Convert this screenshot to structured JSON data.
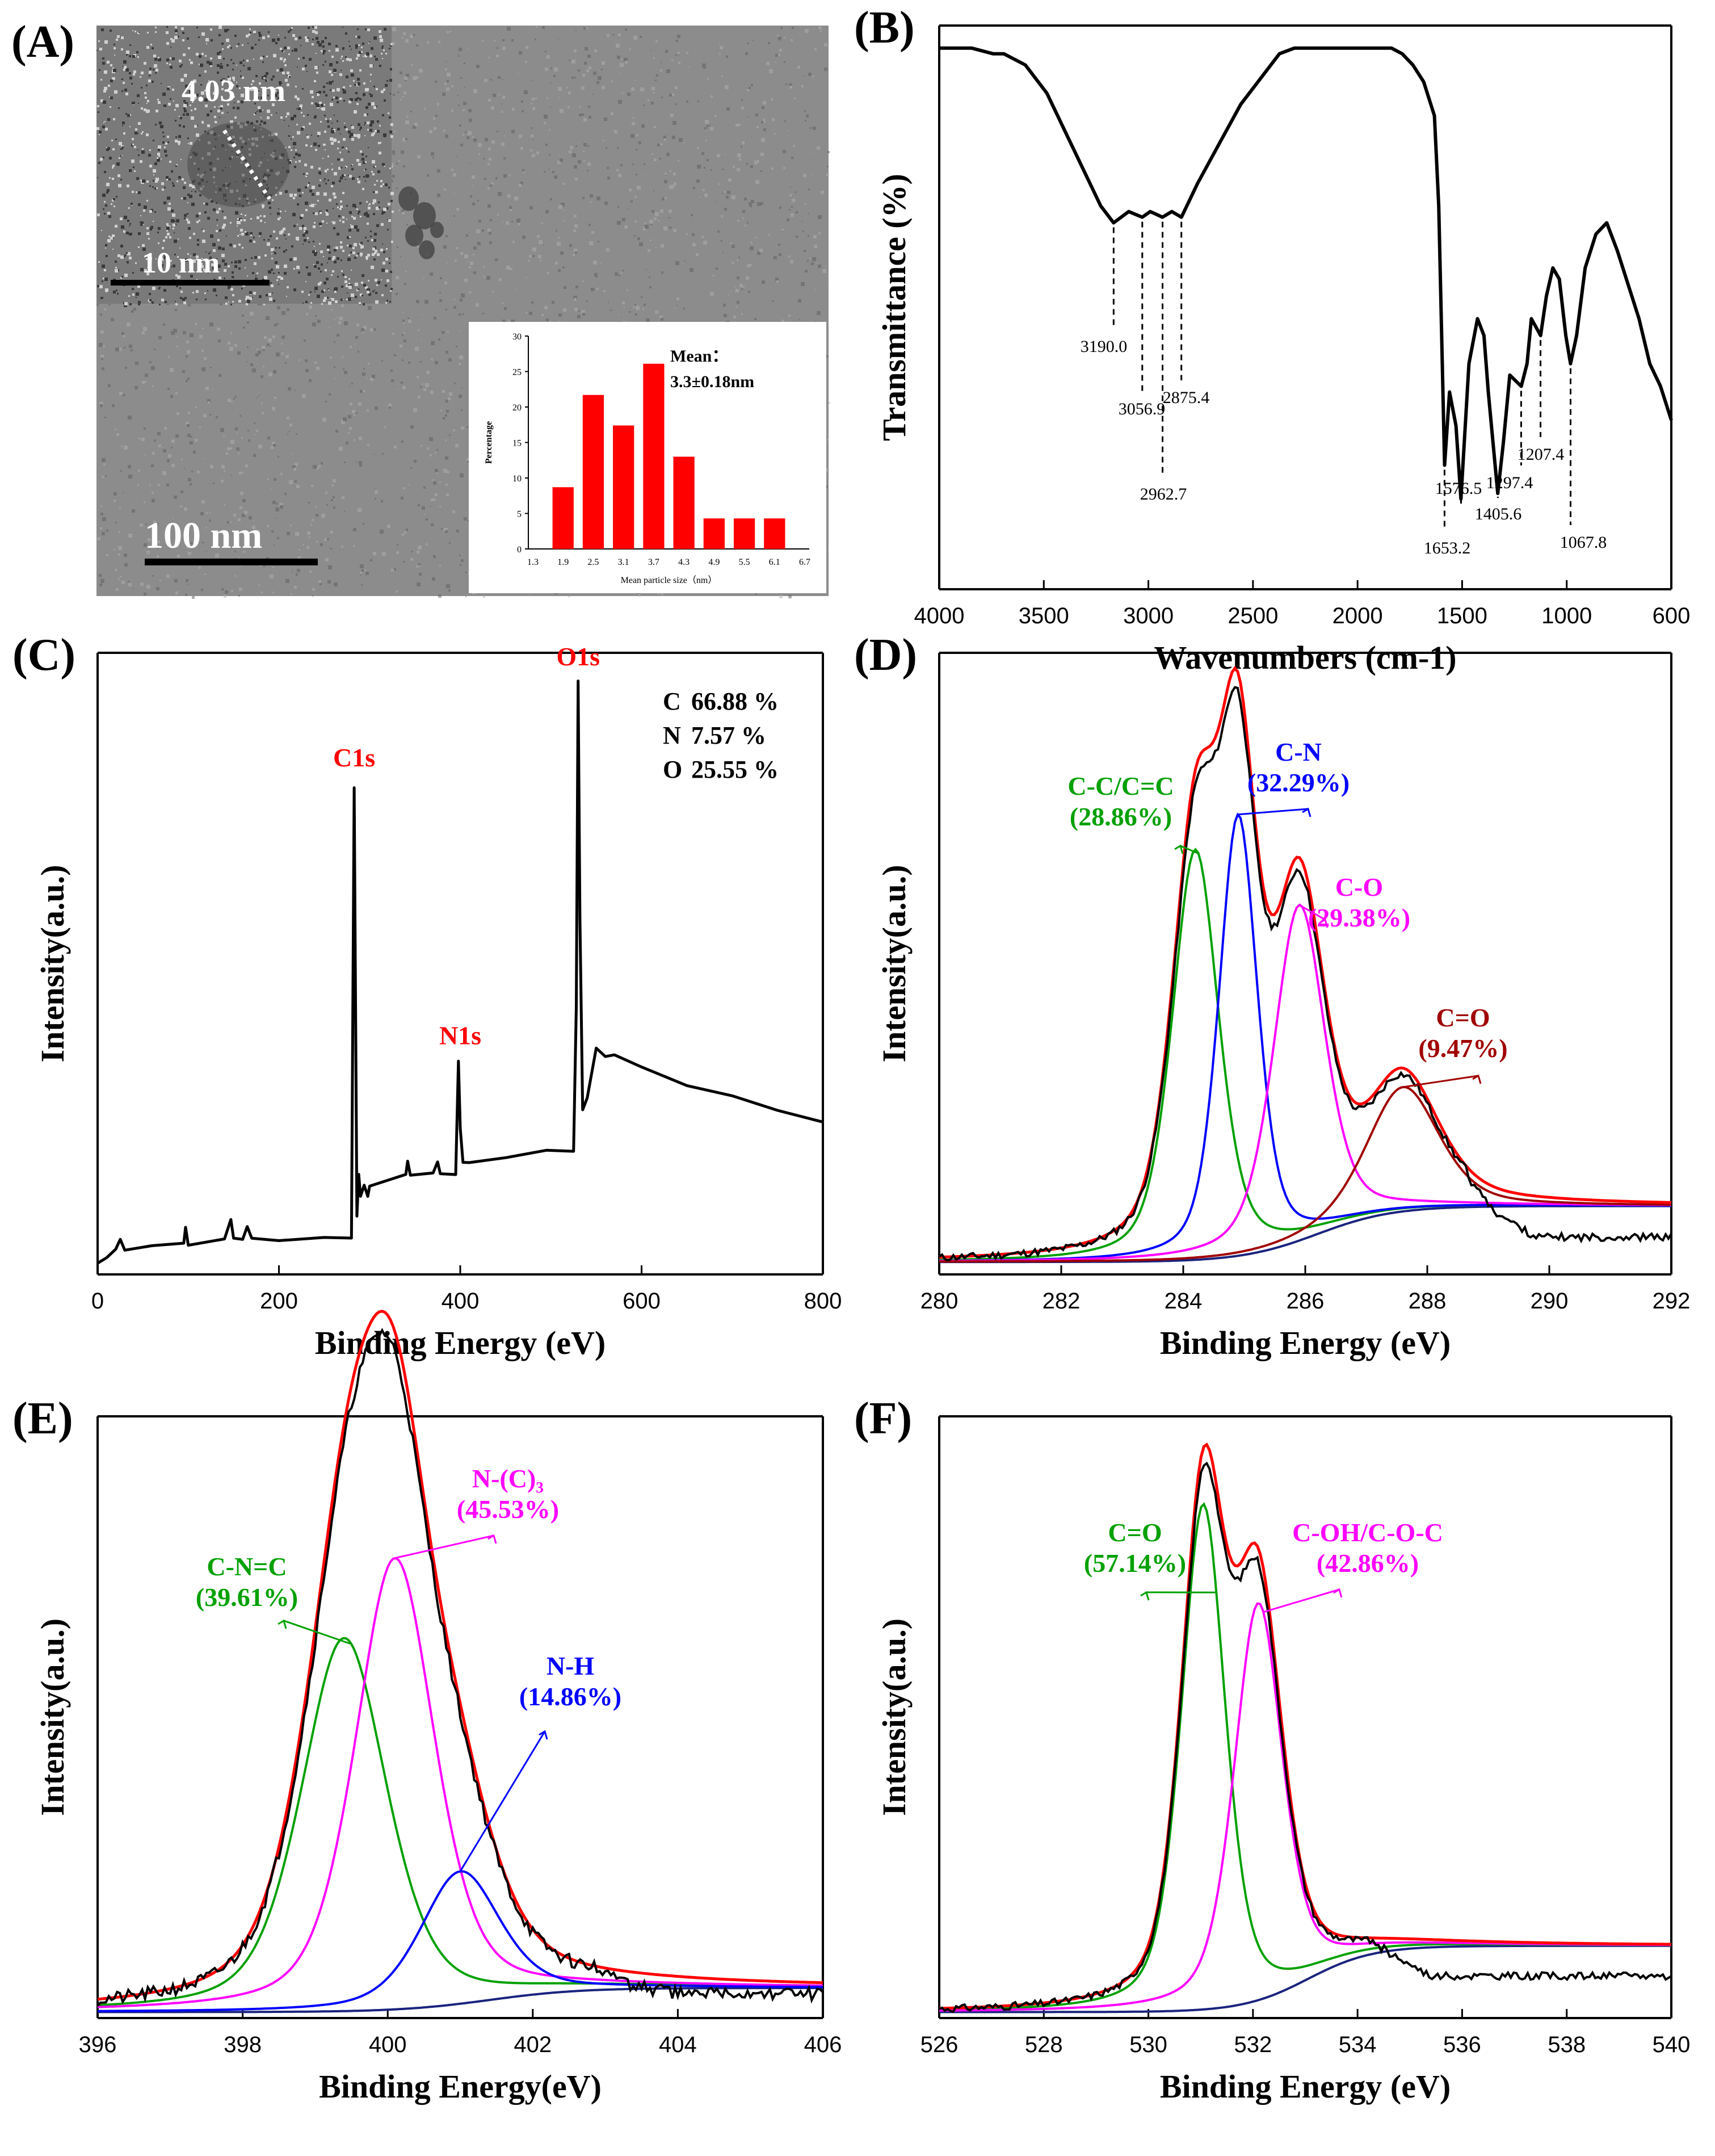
{
  "chart_data": [
    {
      "panel": "(A)",
      "type": "image",
      "annotations": [
        "4.03 nm",
        "10 nm",
        "100 nm"
      ],
      "inset_histogram": {
        "type": "bar",
        "ylabel": "Percentage",
        "xlabel": "Mean particle size（nm）",
        "mean_label": "Mean：",
        "mean_value": "3.3±0.18nm",
        "ticks_x": [
          "1.3",
          "1.9",
          "2.5",
          "3.1",
          "3.7",
          "4.3",
          "4.9",
          "5.5",
          "6.1",
          "6.7"
        ],
        "ticks_y": [
          "0",
          "5",
          "10",
          "15",
          "20",
          "25",
          "30"
        ],
        "categories": [
          "1.9",
          "2.5",
          "3.1",
          "3.7",
          "4.3",
          "4.9",
          "5.5",
          "6.1"
        ],
        "values": [
          8.7,
          21.7,
          17.4,
          26.1,
          13.0,
          4.3,
          4.3,
          4.3
        ],
        "ylim": [
          0,
          30
        ],
        "bar_color": "#ff0000"
      }
    },
    {
      "panel": "(B)",
      "type": "line",
      "xlabel": "Wavenumbers (cm-1)",
      "ylabel": "Transmittance (%)",
      "xlim": [
        4000,
        600
      ],
      "xticks": [
        "4000",
        "3500",
        "3000",
        "2500",
        "2000",
        "1500",
        "1000",
        "600"
      ],
      "peak_labels": [
        "3190.0",
        "3056.9",
        "2962.7",
        "2875.4",
        "1653.2",
        "1576.5",
        "1405.6",
        "1297.4",
        "1207.4",
        "1067.8"
      ],
      "series": [
        {
          "color": "#000000",
          "x": [
            4000,
            3850,
            3750,
            3700,
            3600,
            3500,
            3400,
            3300,
            3250,
            3190,
            3120,
            3057,
            3020,
            2963,
            2920,
            2875,
            2800,
            2700,
            2600,
            2500,
            2420,
            2350,
            2300,
            2000,
            1900,
            1850,
            1800,
            1750,
            1700,
            1680,
            1653,
            1630,
            1600,
            1577,
            1540,
            1500,
            1470,
            1450,
            1406,
            1380,
            1350,
            1297,
            1270,
            1250,
            1207,
            1180,
            1150,
            1120,
            1090,
            1068,
            1040,
            1000,
            950,
            900,
            850,
            800,
            750,
            700,
            650,
            600
          ],
          "y": [
            96,
            96,
            95,
            95,
            93,
            88,
            80,
            72,
            68,
            65,
            67,
            66,
            67,
            66,
            67,
            66,
            72,
            79,
            86,
            91,
            95,
            96,
            96,
            96,
            96,
            95,
            93,
            90,
            84,
            68,
            22,
            35,
            29,
            16,
            40,
            48,
            45,
            35,
            17,
            26,
            38,
            36,
            40,
            48,
            45,
            52,
            57,
            55,
            45,
            40,
            45,
            57,
            63,
            65,
            60,
            54,
            48,
            40,
            36,
            30
          ]
        }
      ]
    },
    {
      "panel": "(C)",
      "type": "line",
      "xlabel": "Binding Energy (eV)",
      "ylabel": "Intensity(a.u.)",
      "xlim": [
        0,
        800
      ],
      "xticks": [
        "0",
        "200",
        "400",
        "600",
        "800"
      ],
      "peak_names": [
        "C1s",
        "N1s",
        "O1s"
      ],
      "composition": [
        {
          "el": "C",
          "pct": "66.88 %"
        },
        {
          "el": "N",
          "pct": "7.57 %"
        },
        {
          "el": "O",
          "pct": "25.55 %"
        }
      ],
      "series": [
        {
          "color": "#000000",
          "x": [
            0,
            10,
            20,
            25,
            30,
            60,
            95,
            97,
            100,
            140,
            147,
            150,
            160,
            165,
            170,
            200,
            250,
            280,
            283,
            284,
            286,
            288,
            290,
            294,
            298,
            300,
            340,
            342,
            345,
            370,
            375,
            378,
            395,
            398,
            400,
            403,
            410,
            450,
            495,
            525,
            528,
            530,
            532,
            535,
            540,
            550,
            560,
            570,
            600,
            650,
            700,
            750,
            800
          ],
          "y": [
            2,
            3,
            4,
            6,
            4,
            5,
            5,
            8,
            5,
            6,
            9,
            6,
            6,
            8,
            6,
            6,
            6,
            6,
            82,
            58,
            10,
            17,
            13,
            15,
            13,
            15,
            17,
            19,
            17,
            17,
            19,
            17,
            17,
            36,
            25,
            19,
            19,
            20,
            21,
            21,
            45,
            100,
            60,
            28,
            30,
            38,
            37,
            37,
            35,
            32,
            30,
            28,
            26
          ]
        }
      ]
    },
    {
      "panel": "(D)",
      "type": "line",
      "xlabel": "Binding Energy (eV)",
      "ylabel": "Intensity(a.u.)",
      "xlim": [
        280,
        292
      ],
      "xticks": [
        "280",
        "282",
        "284",
        "286",
        "288",
        "290",
        "292"
      ],
      "components": [
        {
          "name": "C-C/C=C",
          "pct": "(28.86%)",
          "color": "#00a000",
          "center": 284.2,
          "amp": 66
        },
        {
          "name": "C-N",
          "pct": "(32.29%)",
          "color": "#0000ff",
          "center": 284.9,
          "amp": 71
        },
        {
          "name": "C-O",
          "pct": "(29.38%)",
          "color": "#ff00ff",
          "center": 285.9,
          "amp": 54
        },
        {
          "name": "C=O",
          "pct": "(9.47%)",
          "color": "#a00000",
          "center": 287.6,
          "amp": 20
        }
      ],
      "background_color": "#1a237e",
      "raw_color": "#000000",
      "fit_color": "#ff0000"
    },
    {
      "panel": "(E)",
      "type": "line",
      "xlabel": "Binding Energy(eV)",
      "ylabel": "Intensity(a.u.)",
      "xlim": [
        396,
        406
      ],
      "xticks": [
        "396",
        "398",
        "400",
        "402",
        "404",
        "406"
      ],
      "components": [
        {
          "name": "C-N=C",
          "pct": "(39.61%)",
          "color": "#00a000",
          "center": 399.4,
          "amp": 62
        },
        {
          "name": "N-(C)₃",
          "pct": "(45.53%)",
          "color": "#ff00ff",
          "center": 400.1,
          "amp": 75
        },
        {
          "name": "N-H",
          "pct": "(14.86%)",
          "color": "#0000ff",
          "center": 401.0,
          "amp": 22
        }
      ],
      "background_color": "#1a237e",
      "raw_color": "#000000",
      "fit_color": "#ff0000"
    },
    {
      "panel": "(F)",
      "type": "line",
      "xlabel": "Binding Energy (eV)",
      "ylabel": "Intensity(a.u.)",
      "xlim": [
        526,
        540
      ],
      "xticks": [
        "526",
        "528",
        "530",
        "532",
        "534",
        "536",
        "538",
        "540"
      ],
      "components": [
        {
          "name": "C=O",
          "pct": "(57.14%)",
          "color": "#00a000",
          "center": 531.05,
          "amp": 84
        },
        {
          "name": "C-OH/C-O-C",
          "pct": "(42.86%)",
          "color": "#ff00ff",
          "center": 532.1,
          "amp": 66
        }
      ],
      "background_color": "#1a237e",
      "raw_color": "#000000",
      "fit_color": "#ff0000"
    }
  ]
}
